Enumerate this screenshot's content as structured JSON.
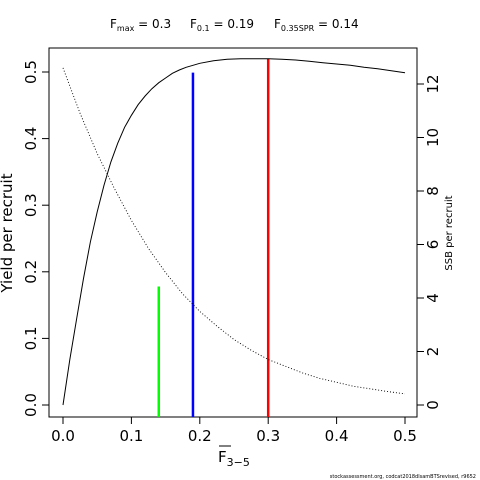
{
  "chart_data": {
    "type": "line",
    "subtitle": {
      "fmax": {
        "main": "F",
        "sub": "max",
        "rest": " = 0.3"
      },
      "f01": {
        "main": "F",
        "sub": "0.1",
        "rest": " = 0.19"
      },
      "fspr": {
        "main": "F",
        "sub": "0.35SPR",
        "rest": " = 0.14"
      }
    },
    "xlabel": {
      "main": "F",
      "sub": "3−5"
    },
    "ylabel": "Yield per recruit",
    "y2label": "SSB per recruit",
    "footnote": "stockassessment.org, codcat2018dlsamBTSrevised, r9652",
    "xlim": [
      0,
      0.5
    ],
    "ylim": [
      0,
      0.52
    ],
    "y2lim": [
      0,
      12.5
    ],
    "xticks": [
      0,
      0.1,
      0.2,
      0.3,
      0.4,
      0.5
    ],
    "xtick_labels": [
      "0.0",
      "0.1",
      "0.2",
      "0.3",
      "0.4",
      "0.5"
    ],
    "yticks": [
      0,
      0.1,
      0.2,
      0.3,
      0.4,
      0.5
    ],
    "ytick_labels": [
      "0.0",
      "0.1",
      "0.2",
      "0.3",
      "0.4",
      "0.5"
    ],
    "y2ticks": [
      0,
      2,
      4,
      6,
      8,
      10,
      12
    ],
    "y2tick_labels": [
      "0",
      "2",
      "4",
      "6",
      "8",
      "10",
      "12"
    ],
    "grid": false,
    "series": [
      {
        "axis": "left",
        "style": "solid",
        "color": "#000000",
        "x": [
          0,
          0.01,
          0.02,
          0.03,
          0.04,
          0.05,
          0.06,
          0.07,
          0.08,
          0.09,
          0.1,
          0.11,
          0.12,
          0.13,
          0.14,
          0.15,
          0.16,
          0.17,
          0.18,
          0.19,
          0.2,
          0.22,
          0.24,
          0.26,
          0.28,
          0.3,
          0.32,
          0.34,
          0.36,
          0.38,
          0.4,
          0.42,
          0.44,
          0.46,
          0.48,
          0.5
        ],
        "y": [
          0,
          0.068,
          0.13,
          0.19,
          0.245,
          0.29,
          0.33,
          0.365,
          0.393,
          0.417,
          0.435,
          0.451,
          0.464,
          0.475,
          0.484,
          0.491,
          0.498,
          0.503,
          0.507,
          0.51,
          0.513,
          0.517,
          0.519,
          0.52,
          0.52,
          0.52,
          0.519,
          0.518,
          0.516,
          0.514,
          0.512,
          0.51,
          0.507,
          0.505,
          0.502,
          0.499
        ]
      },
      {
        "axis": "right",
        "style": "dotted",
        "color": "#000000",
        "x": [
          0,
          0.025,
          0.05,
          0.075,
          0.1,
          0.125,
          0.15,
          0.175,
          0.2,
          0.225,
          0.25,
          0.275,
          0.3,
          0.325,
          0.35,
          0.375,
          0.4,
          0.425,
          0.45,
          0.475,
          0.5
        ],
        "y": [
          12.6,
          10.9,
          9.4,
          8.1,
          6.9,
          5.85,
          4.95,
          4.15,
          3.5,
          2.95,
          2.45,
          2.05,
          1.7,
          1.45,
          1.2,
          1.0,
          0.85,
          0.7,
          0.6,
          0.5,
          0.42
        ]
      }
    ],
    "reference_lines": [
      {
        "label": "F0.35SPR",
        "x": 0.14,
        "top": 0.178,
        "color": "#00ff00"
      },
      {
        "label": "F0.1",
        "x": 0.19,
        "top": 0.499,
        "color": "#0000ff"
      },
      {
        "label": "Fmax",
        "x": 0.3,
        "top": 0.52,
        "color": "#ff0000"
      }
    ]
  }
}
